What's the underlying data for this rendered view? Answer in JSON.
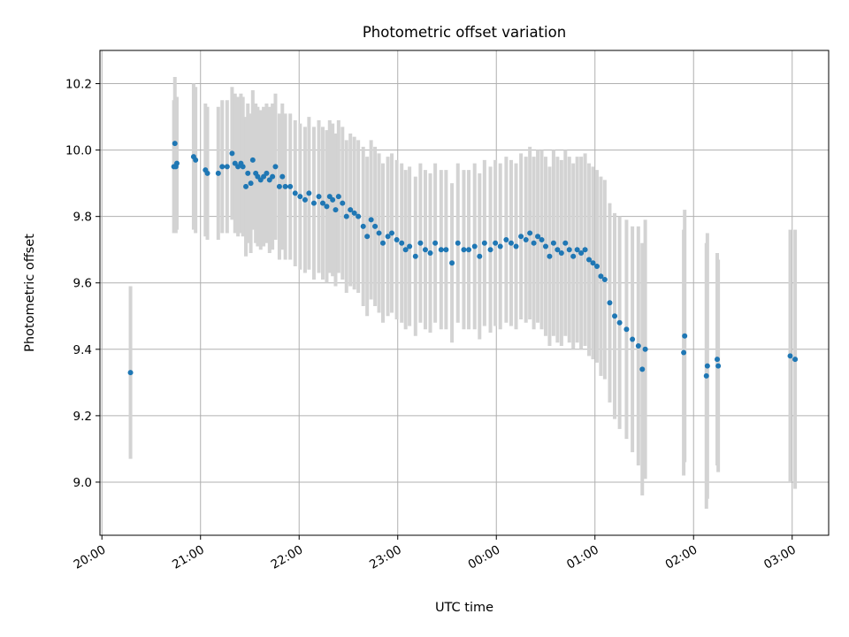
{
  "chart_data": {
    "type": "scatter",
    "title": "Photometric offset variation",
    "xlabel": "UTC time",
    "ylabel": "Photometric offset",
    "x_unit": "hours since 20:00 UTC",
    "xlim": [
      -0.02,
      7.37
    ],
    "ylim": [
      8.84,
      10.3
    ],
    "grid": true,
    "x_ticks": [
      {
        "value": 0,
        "label": "20:00"
      },
      {
        "value": 1,
        "label": "21:00"
      },
      {
        "value": 2,
        "label": "22:00"
      },
      {
        "value": 3,
        "label": "23:00"
      },
      {
        "value": 4,
        "label": "00:00"
      },
      {
        "value": 5,
        "label": "01:00"
      },
      {
        "value": 6,
        "label": "02:00"
      },
      {
        "value": 7,
        "label": "03:00"
      }
    ],
    "y_ticks": [
      {
        "value": 9.0,
        "label": "9.0"
      },
      {
        "value": 9.2,
        "label": "9.2"
      },
      {
        "value": 9.4,
        "label": "9.4"
      },
      {
        "value": 9.6,
        "label": "9.6"
      },
      {
        "value": 9.8,
        "label": "9.8"
      },
      {
        "value": 10.0,
        "label": "10.0"
      },
      {
        "value": 10.2,
        "label": "10.2"
      }
    ],
    "colors": {
      "points": "#1f77b4",
      "errorbars": "#d3d3d3",
      "grid": "#b0b0b0"
    },
    "series": [
      {
        "x": [
          0.29,
          0.73,
          0.74,
          0.75,
          0.76,
          0.93,
          0.95,
          1.05,
          1.07,
          1.18,
          1.22,
          1.27,
          1.32,
          1.35,
          1.38,
          1.41,
          1.43,
          1.46,
          1.48,
          1.51,
          1.53,
          1.56,
          1.58,
          1.61,
          1.64,
          1.67,
          1.7,
          1.73,
          1.76,
          1.8,
          1.83,
          1.86,
          1.91,
          1.96,
          2.01,
          2.06,
          2.1,
          2.15,
          2.2,
          2.24,
          2.28,
          2.31,
          2.34,
          2.37,
          2.4,
          2.44,
          2.48,
          2.52,
          2.56,
          2.6,
          2.65,
          2.69,
          2.73,
          2.77,
          2.81,
          2.85,
          2.9,
          2.94,
          2.99,
          3.04,
          3.08,
          3.12,
          3.18,
          3.23,
          3.28,
          3.33,
          3.38,
          3.44,
          3.49,
          3.55,
          3.61,
          3.67,
          3.72,
          3.78,
          3.83,
          3.88,
          3.94,
          3.99,
          4.04,
          4.1,
          4.15,
          4.2,
          4.25,
          4.3,
          4.34,
          4.38,
          4.42,
          4.46,
          4.5,
          4.54,
          4.58,
          4.62,
          4.66,
          4.7,
          4.74,
          4.78,
          4.82,
          4.86,
          4.9,
          4.94,
          4.98,
          5.02,
          5.06,
          5.1,
          5.15,
          5.2,
          5.25,
          5.32,
          5.38,
          5.44,
          5.48,
          5.51,
          5.9,
          5.91,
          6.13,
          6.14,
          6.24,
          6.25,
          6.98,
          7.03
        ],
        "y": [
          9.33,
          9.95,
          10.02,
          9.95,
          9.96,
          9.98,
          9.97,
          9.94,
          9.93,
          9.93,
          9.95,
          9.95,
          9.99,
          9.96,
          9.95,
          9.96,
          9.95,
          9.89,
          9.93,
          9.9,
          9.97,
          9.93,
          9.92,
          9.91,
          9.92,
          9.93,
          9.91,
          9.92,
          9.95,
          9.89,
          9.92,
          9.89,
          9.89,
          9.87,
          9.86,
          9.85,
          9.87,
          9.84,
          9.86,
          9.84,
          9.83,
          9.86,
          9.85,
          9.82,
          9.86,
          9.84,
          9.8,
          9.82,
          9.81,
          9.8,
          9.77,
          9.74,
          9.79,
          9.77,
          9.75,
          9.72,
          9.74,
          9.75,
          9.73,
          9.72,
          9.7,
          9.71,
          9.68,
          9.72,
          9.7,
          9.69,
          9.72,
          9.7,
          9.7,
          9.66,
          9.72,
          9.7,
          9.7,
          9.71,
          9.68,
          9.72,
          9.7,
          9.72,
          9.71,
          9.73,
          9.72,
          9.71,
          9.74,
          9.73,
          9.75,
          9.72,
          9.74,
          9.73,
          9.71,
          9.68,
          9.72,
          9.7,
          9.69,
          9.72,
          9.7,
          9.68,
          9.7,
          9.69,
          9.7,
          9.67,
          9.66,
          9.65,
          9.62,
          9.61,
          9.54,
          9.5,
          9.48,
          9.46,
          9.43,
          9.41,
          9.34,
          9.4,
          9.39,
          9.44,
          9.32,
          9.35,
          9.37,
          9.35,
          9.38,
          9.37
        ],
        "err": [
          0.26,
          0.2,
          0.2,
          0.2,
          0.2,
          0.22,
          0.22,
          0.2,
          0.2,
          0.2,
          0.2,
          0.2,
          0.2,
          0.21,
          0.21,
          0.21,
          0.21,
          0.21,
          0.21,
          0.21,
          0.21,
          0.21,
          0.21,
          0.21,
          0.21,
          0.21,
          0.22,
          0.22,
          0.22,
          0.22,
          0.22,
          0.22,
          0.22,
          0.22,
          0.22,
          0.22,
          0.23,
          0.23,
          0.23,
          0.23,
          0.23,
          0.23,
          0.23,
          0.23,
          0.23,
          0.23,
          0.23,
          0.23,
          0.23,
          0.23,
          0.24,
          0.24,
          0.24,
          0.24,
          0.24,
          0.24,
          0.24,
          0.24,
          0.24,
          0.24,
          0.24,
          0.24,
          0.24,
          0.24,
          0.24,
          0.24,
          0.24,
          0.24,
          0.24,
          0.24,
          0.24,
          0.24,
          0.24,
          0.25,
          0.25,
          0.25,
          0.25,
          0.25,
          0.25,
          0.25,
          0.25,
          0.25,
          0.25,
          0.25,
          0.26,
          0.26,
          0.26,
          0.27,
          0.27,
          0.27,
          0.28,
          0.28,
          0.28,
          0.28,
          0.28,
          0.28,
          0.28,
          0.29,
          0.29,
          0.29,
          0.29,
          0.29,
          0.3,
          0.3,
          0.3,
          0.31,
          0.32,
          0.33,
          0.34,
          0.36,
          0.38,
          0.39,
          0.37,
          0.38,
          0.4,
          0.4,
          0.32,
          0.32,
          0.38,
          0.39
        ]
      }
    ]
  }
}
